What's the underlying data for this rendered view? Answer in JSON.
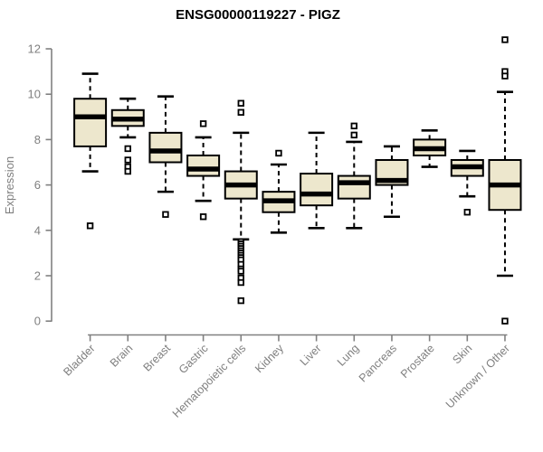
{
  "chart_data": {
    "type": "boxplot",
    "title": "ENSG00000119227 - PIGZ",
    "xlabel": "",
    "ylabel": "Expression",
    "ylim": [
      0,
      12
    ],
    "yticks": [
      0,
      2,
      4,
      6,
      8,
      10,
      12
    ],
    "grid": false,
    "legend": "none",
    "categories": [
      "Bladder",
      "Brain",
      "Breast",
      "Gastric",
      "Hematopoietic cells",
      "Kidney",
      "Liver",
      "Lung",
      "Pancreas",
      "Prostate",
      "Skin",
      "Unknown / Other"
    ],
    "series": [
      {
        "category": "Bladder",
        "whisker_low": 6.6,
        "q1": 7.7,
        "median": 9.0,
        "q3": 9.8,
        "whisker_high": 10.9,
        "outliers": [
          4.2
        ]
      },
      {
        "category": "Brain",
        "whisker_low": 8.1,
        "q1": 8.6,
        "median": 8.9,
        "q3": 9.3,
        "whisker_high": 9.8,
        "outliers": [
          7.6,
          7.1,
          6.8,
          6.6
        ]
      },
      {
        "category": "Breast",
        "whisker_low": 5.7,
        "q1": 7.0,
        "median": 7.5,
        "q3": 8.3,
        "whisker_high": 9.9,
        "outliers": [
          4.7
        ]
      },
      {
        "category": "Gastric",
        "whisker_low": 5.3,
        "q1": 6.4,
        "median": 6.7,
        "q3": 7.3,
        "whisker_high": 8.1,
        "outliers": [
          8.7,
          4.6
        ]
      },
      {
        "category": "Hematopoietic cells",
        "whisker_low": 3.6,
        "q1": 5.4,
        "median": 6.0,
        "q3": 6.6,
        "whisker_high": 8.3,
        "outliers": [
          9.6,
          9.2,
          3.5,
          3.4,
          3.3,
          3.2,
          3.1,
          3.0,
          2.9,
          2.8,
          2.7,
          2.5,
          2.3,
          2.2,
          1.9,
          1.7,
          0.9
        ]
      },
      {
        "category": "Kidney",
        "whisker_low": 3.9,
        "q1": 4.8,
        "median": 5.3,
        "q3": 5.7,
        "whisker_high": 6.9,
        "outliers": [
          7.4
        ]
      },
      {
        "category": "Liver",
        "whisker_low": 4.1,
        "q1": 5.1,
        "median": 5.6,
        "q3": 6.5,
        "whisker_high": 8.3,
        "outliers": []
      },
      {
        "category": "Lung",
        "whisker_low": 4.1,
        "q1": 5.4,
        "median": 6.1,
        "q3": 6.4,
        "whisker_high": 7.9,
        "outliers": [
          8.6,
          8.2
        ]
      },
      {
        "category": "Pancreas",
        "whisker_low": 4.6,
        "q1": 6.0,
        "median": 6.2,
        "q3": 7.1,
        "whisker_high": 7.7,
        "outliers": []
      },
      {
        "category": "Prostate",
        "whisker_low": 6.8,
        "q1": 7.3,
        "median": 7.6,
        "q3": 8.0,
        "whisker_high": 8.4,
        "outliers": []
      },
      {
        "category": "Skin",
        "whisker_low": 5.5,
        "q1": 6.4,
        "median": 6.8,
        "q3": 7.1,
        "whisker_high": 7.5,
        "outliers": [
          4.8
        ]
      },
      {
        "category": "Unknown / Other",
        "whisker_low": 2.0,
        "q1": 4.9,
        "median": 6.0,
        "q3": 7.1,
        "whisker_high": 10.1,
        "outliers": [
          12.4,
          11.0,
          10.8,
          0.0
        ]
      }
    ],
    "colors": {
      "box_fill": "#EDE7CD",
      "box_border": "#000000",
      "median": "#000000",
      "whisker": "#000000",
      "outlier_fill": "#ffffff",
      "axis": "#808080",
      "tick_label": "#7f7f7f",
      "title": "#000000",
      "background": "#ffffff"
    }
  }
}
